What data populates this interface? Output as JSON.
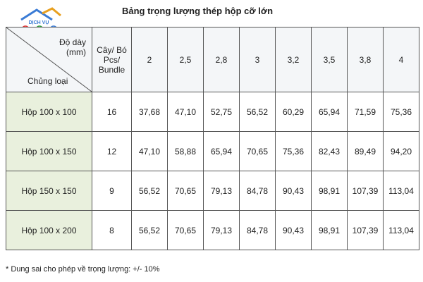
{
  "title": "Bảng trọng lượng thép hộp cỡ lớn",
  "logo": {
    "text": "DỊCH VỤ"
  },
  "table": {
    "corner": {
      "thickness": "Độ dày\n(mm)",
      "type": "Chủng loại"
    },
    "count_header": "Cây/ Bó\nPcs/\nBundle",
    "thickness_headers": [
      "2",
      "2,5",
      "2,8",
      "3",
      "3,2",
      "3,5",
      "3,8",
      "4"
    ],
    "rows": [
      {
        "type": "Hộp 100 x 100",
        "count": "16",
        "values": [
          "37,68",
          "47,10",
          "52,75",
          "56,52",
          "60,29",
          "65,94",
          "71,59",
          "75,36"
        ]
      },
      {
        "type": "Hộp 100 x 150",
        "count": "12",
        "values": [
          "47,10",
          "58,88",
          "65,94",
          "70,65",
          "75,36",
          "82,43",
          "89,49",
          "94,20"
        ]
      },
      {
        "type": "Hộp 150 x 150",
        "count": "9",
        "values": [
          "56,52",
          "70,65",
          "79,13",
          "84,78",
          "90,43",
          "98,91",
          "107,39",
          "113,04"
        ]
      },
      {
        "type": "Hộp 100 x 200",
        "count": "8",
        "values": [
          "56,52",
          "70,65",
          "79,13",
          "84,78",
          "90,43",
          "98,91",
          "107,39",
          "113,04"
        ]
      }
    ]
  },
  "footnote": "* Dung sai cho phép về trọng lượng: +/- 10%"
}
